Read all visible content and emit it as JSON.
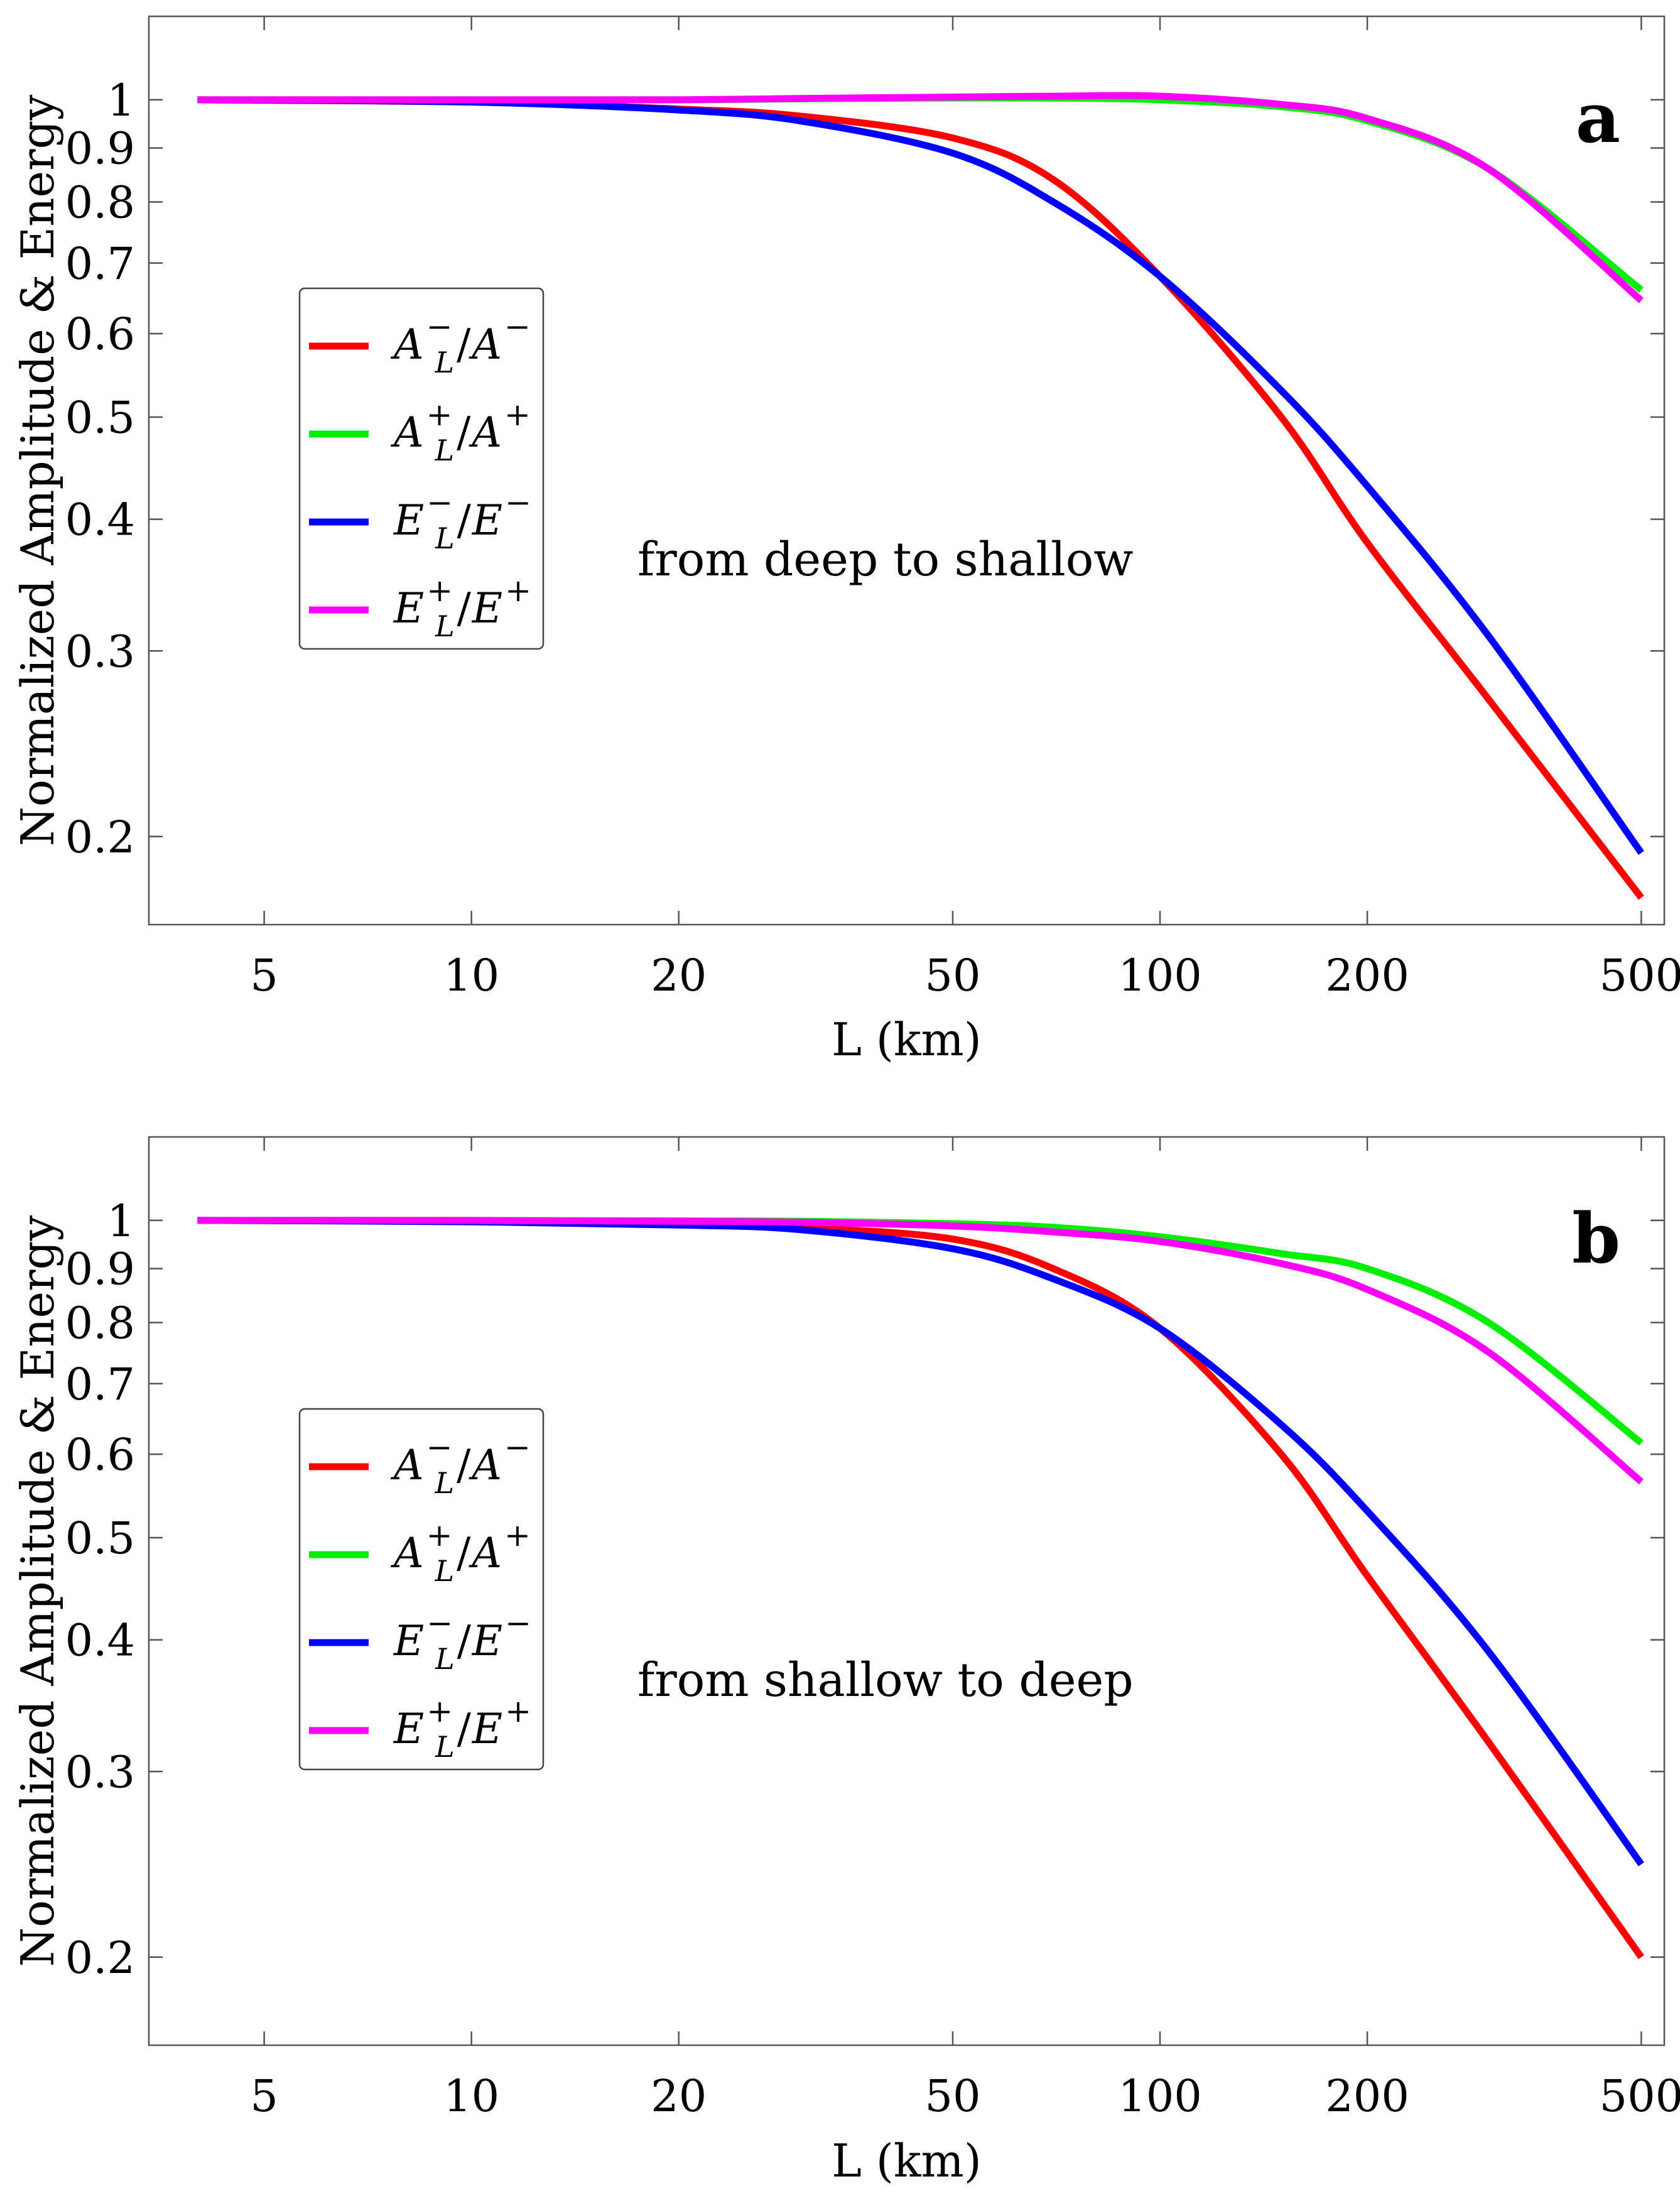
{
  "chart_data": [
    {
      "type": "line",
      "panel_label": "a",
      "annotation": "from deep to shallow",
      "xlabel": "L (km)",
      "ylabel": "Normalized Amplitude & Energy",
      "xscale": "log",
      "yscale": "log",
      "xlim": [
        3.4,
        540
      ],
      "ylim": [
        0.165,
        1.2
      ],
      "xticks": [
        5,
        10,
        20,
        50,
        100,
        200,
        500
      ],
      "xtick_labels": [
        "5",
        "10",
        "20",
        "50",
        "100",
        "200",
        "500"
      ],
      "yticks": [
        0.2,
        0.3,
        0.4,
        0.5,
        0.6,
        0.7,
        0.8,
        0.9,
        1
      ],
      "ytick_labels": [
        "0.2",
        "0.3",
        "0.4",
        "0.5",
        "0.6",
        "0.7",
        "0.8",
        "0.9",
        "1"
      ],
      "legend_position": "center-left",
      "x": [
        4,
        10,
        20,
        30,
        50,
        70,
        100,
        150,
        200,
        300,
        500
      ],
      "series": [
        {
          "name": "A_L^-/A^-",
          "label_base": "A",
          "label_sup": "−",
          "color": "#ff0000",
          "values": [
            1.0,
            0.995,
            0.98,
            0.965,
            0.92,
            0.84,
            0.68,
            0.5,
            0.38,
            0.27,
            0.175
          ]
        },
        {
          "name": "A_L^+/A^+",
          "label_base": "A",
          "label_sup": "+",
          "color": "#00ee00",
          "values": [
            1.0,
            1.0,
            1.0,
            1.002,
            1.004,
            1.004,
            1.0,
            0.985,
            0.955,
            0.86,
            0.66
          ]
        },
        {
          "name": "E_L^-/E^-",
          "label_base": "E",
          "label_sup": "−",
          "color": "#0000ff",
          "values": [
            1.0,
            0.995,
            0.978,
            0.955,
            0.89,
            0.8,
            0.68,
            0.53,
            0.43,
            0.31,
            0.193
          ]
        },
        {
          "name": "E_L^+/E^+",
          "label_base": "E",
          "label_sup": "+",
          "color": "#ff00ff",
          "values": [
            1.0,
            1.0,
            1.0,
            1.003,
            1.006,
            1.008,
            1.008,
            0.99,
            0.96,
            0.86,
            0.645
          ]
        }
      ]
    },
    {
      "type": "line",
      "panel_label": "b",
      "annotation": "from shallow to deep",
      "xlabel": "L (km)",
      "ylabel": "Normalized Amplitude & Energy",
      "xscale": "log",
      "yscale": "log",
      "xlim": [
        3.4,
        540
      ],
      "ylim": [
        0.165,
        1.2
      ],
      "xticks": [
        5,
        10,
        20,
        50,
        100,
        200,
        500
      ],
      "xtick_labels": [
        "5",
        "10",
        "20",
        "50",
        "100",
        "200",
        "500"
      ],
      "yticks": [
        0.2,
        0.3,
        0.4,
        0.5,
        0.6,
        0.7,
        0.8,
        0.9,
        1
      ],
      "ytick_labels": [
        "0.2",
        "0.3",
        "0.4",
        "0.5",
        "0.6",
        "0.7",
        "0.8",
        "0.9",
        "1"
      ],
      "legend_position": "center-left",
      "x": [
        4,
        10,
        20,
        30,
        50,
        70,
        100,
        150,
        200,
        300,
        500
      ],
      "series": [
        {
          "name": "A_L^-/A^-",
          "label_base": "A",
          "label_sup": "−",
          "color": "#ff0000",
          "values": [
            1.0,
            0.998,
            0.993,
            0.985,
            0.96,
            0.9,
            0.79,
            0.6,
            0.46,
            0.32,
            0.2
          ]
        },
        {
          "name": "A_L^+/A^+",
          "label_base": "A",
          "label_sup": "+",
          "color": "#00ee00",
          "values": [
            1.0,
            1.0,
            0.999,
            0.998,
            0.993,
            0.985,
            0.965,
            0.93,
            0.9,
            0.8,
            0.615
          ]
        },
        {
          "name": "E_L^-/E^-",
          "label_base": "E",
          "label_sup": "−",
          "color": "#0000ff",
          "values": [
            1.0,
            0.997,
            0.99,
            0.98,
            0.94,
            0.88,
            0.79,
            0.64,
            0.53,
            0.39,
            0.245
          ]
        },
        {
          "name": "E_L^+/E^+",
          "label_base": "E",
          "label_sup": "+",
          "color": "#ff00ff",
          "values": [
            1.0,
            1.0,
            0.998,
            0.996,
            0.988,
            0.975,
            0.955,
            0.91,
            0.86,
            0.75,
            0.565
          ]
        }
      ]
    }
  ]
}
